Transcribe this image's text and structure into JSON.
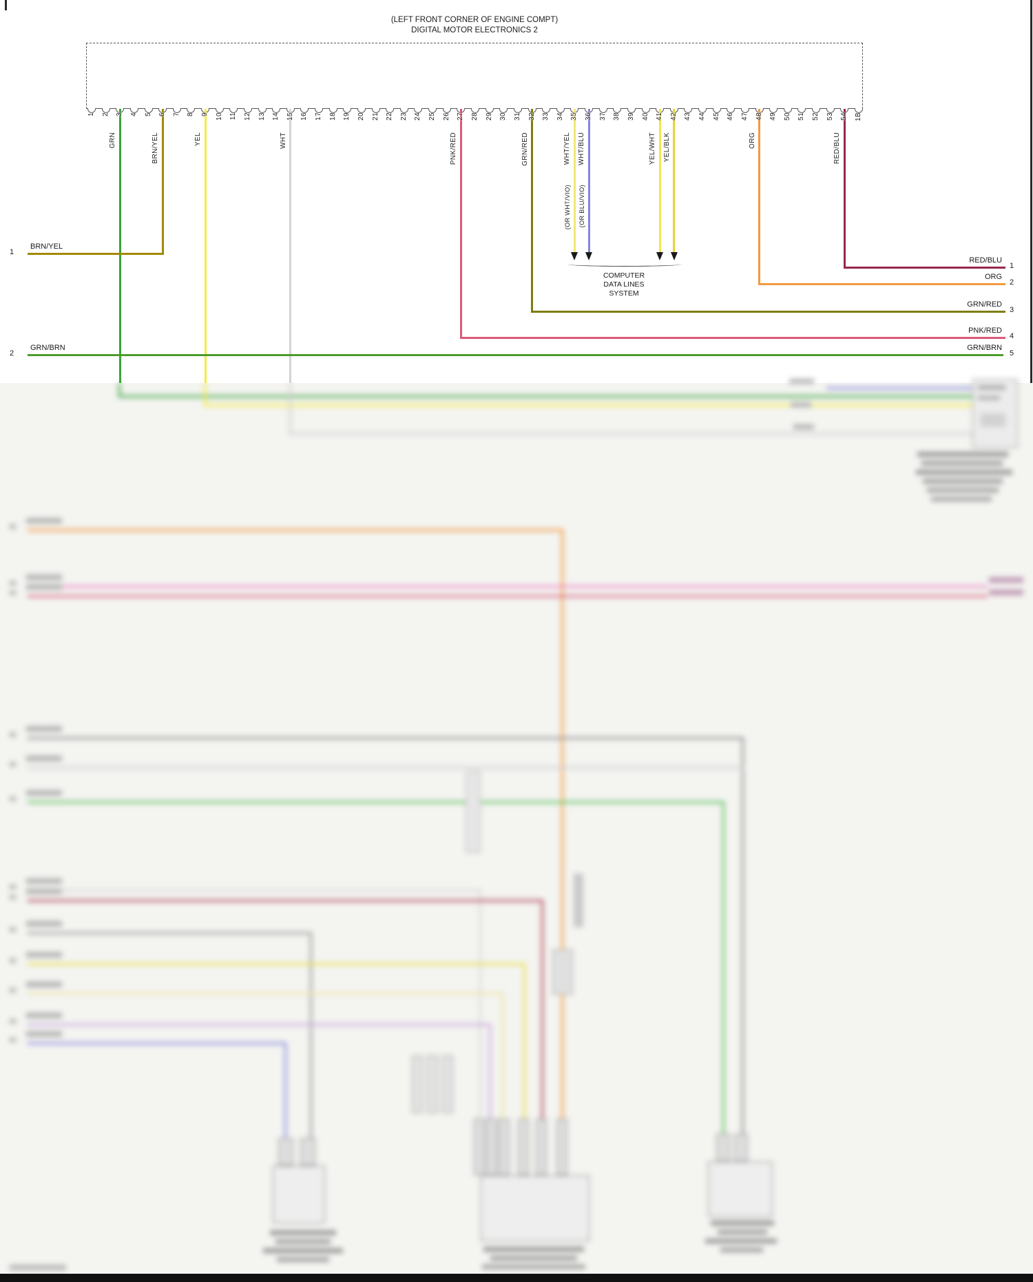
{
  "header": {
    "location_line": "(LEFT FRONT CORNER OF ENGINE COMPT)",
    "title": "DIGITAL MOTOR ELECTRONICS 2"
  },
  "connector": {
    "pins": [
      "1",
      "2",
      "3",
      "4",
      "5",
      "6",
      "7",
      "8",
      "9",
      "10",
      "11",
      "12",
      "13",
      "14",
      "15",
      "16",
      "17",
      "18",
      "19",
      "20",
      "21",
      "22",
      "23",
      "24",
      "25",
      "26",
      "27",
      "28",
      "29",
      "30",
      "31",
      "32",
      "33",
      "34",
      "35",
      "36",
      "37",
      "38",
      "39",
      "40",
      "41",
      "42",
      "43",
      "44",
      "45",
      "46",
      "47",
      "48",
      "49",
      "50",
      "51",
      "52",
      "53",
      "54",
      "1B"
    ]
  },
  "wires": [
    {
      "pin": "3",
      "label": "GRN",
      "color": "#3aa23a"
    },
    {
      "pin": "6",
      "label": "BRN/YEL",
      "color": "#a18a00"
    },
    {
      "pin": "9",
      "label": "YEL",
      "color": "#f2ec42"
    },
    {
      "pin": "15",
      "label": "WHT",
      "color": "#d4d4d4"
    },
    {
      "pin": "27",
      "label": "PNK/RED",
      "color": "#dd5878"
    },
    {
      "pin": "32",
      "label": "GRN/RED",
      "color": "#7e7c0a"
    },
    {
      "pin": "35",
      "label": "WHT/YEL",
      "color": "#efe96e",
      "alt_label": "(OR WHT/VIO)"
    },
    {
      "pin": "36",
      "label": "WHT/BLU",
      "color": "#8486dd",
      "alt_label": "(OR BLU/VIO)"
    },
    {
      "pin": "41",
      "label": "YEL/WHT",
      "color": "#f0e64e"
    },
    {
      "pin": "42",
      "label": "YEL/BLK",
      "color": "#e6d62e"
    },
    {
      "pin": "48",
      "label": "ORG",
      "color": "#f49a3c"
    },
    {
      "pin": "54",
      "label": "RED/BLU",
      "color": "#97284e"
    }
  ],
  "data_lines_callout": {
    "caption": [
      "COMPUTER",
      "DATA LINES",
      "SYSTEM"
    ]
  },
  "left_terminals": [
    {
      "num": "1",
      "label": "BRN/YEL",
      "color": "#a18a00"
    },
    {
      "num": "2",
      "label": "GRN/BRN",
      "color": "#4c9c2a"
    }
  ],
  "right_terminals": [
    {
      "num": "1",
      "label": "RED/BLU",
      "color": "#97284e"
    },
    {
      "num": "2",
      "label": "ORG",
      "color": "#f49a3c"
    },
    {
      "num": "3",
      "label": "GRN/RED",
      "color": "#7e7c0a"
    },
    {
      "num": "4",
      "label": "PNK/RED",
      "color": "#dd5878"
    },
    {
      "num": "5",
      "label": "GRN/BRN",
      "color": "#4c9c2a"
    }
  ]
}
